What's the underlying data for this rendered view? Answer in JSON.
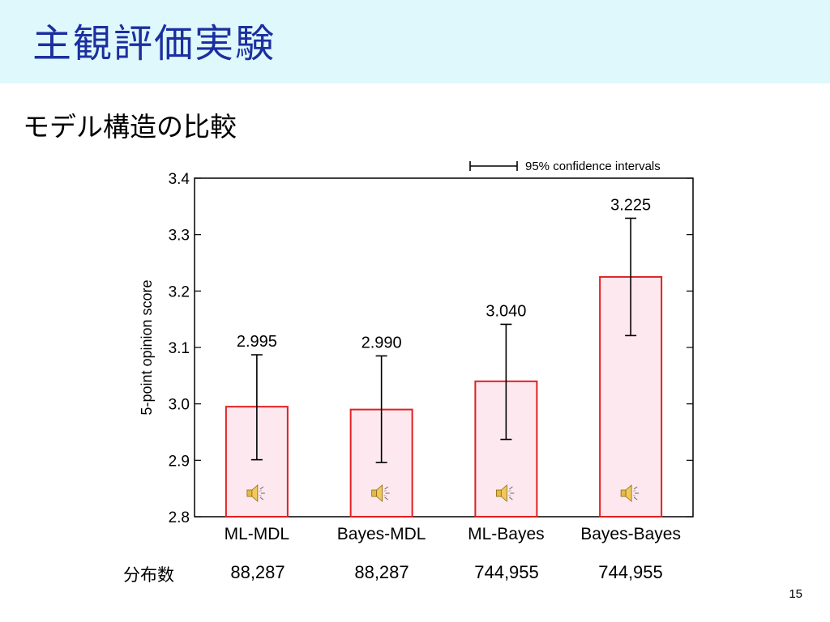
{
  "slide": {
    "title": "主観評価実験",
    "subtitle": "モデル構造の比較",
    "page_number": "15"
  },
  "distribution": {
    "label": "分布数",
    "values": [
      "88,287",
      "88,287",
      "744,955",
      "744,955"
    ]
  },
  "chart_data": {
    "type": "bar",
    "categories": [
      "ML-MDL",
      "Bayes-MDL",
      "ML-Bayes",
      "Bayes-Bayes"
    ],
    "values": [
      2.995,
      2.99,
      3.04,
      3.225
    ],
    "value_labels": [
      "2.995",
      "2.990",
      "3.040",
      "3.225"
    ],
    "ci_low": [
      2.901,
      2.896,
      2.937,
      3.121
    ],
    "ci_high": [
      3.087,
      3.085,
      3.141,
      3.329
    ],
    "ylabel": "5-point opinion score",
    "ylim": [
      2.8,
      3.4
    ],
    "yticks": [
      "2.8",
      "2.9",
      "3.0",
      "3.1",
      "3.2",
      "3.3",
      "3.4"
    ],
    "legend": {
      "label": "95% confidence intervals",
      "placement": "top-right"
    },
    "colors": {
      "bar_fill": "#fde8f0",
      "bar_stroke": "#e02020",
      "error_bar": "#000000",
      "frame": "#000000"
    },
    "icons": [
      "speaker-icon",
      "speaker-icon",
      "speaker-icon",
      "speaker-icon"
    ]
  }
}
